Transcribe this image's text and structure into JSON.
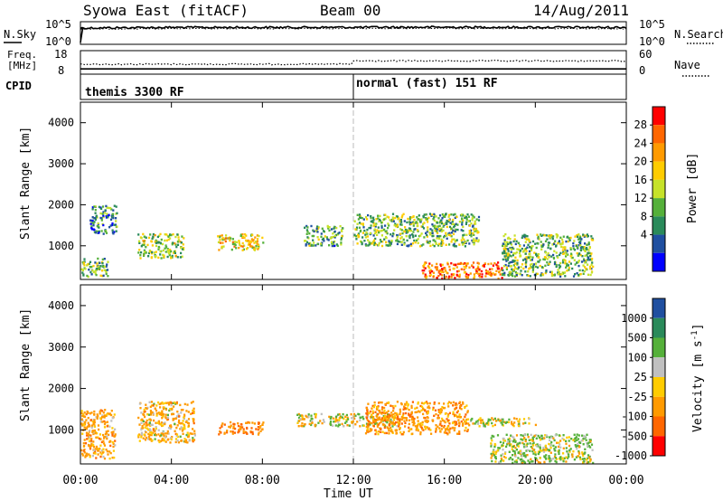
{
  "header": {
    "station": "Syowa East (fitACF)",
    "beam": "Beam 00",
    "date": "14/Aug/2011"
  },
  "noise_panel": {
    "left_label": "N.Sky",
    "right_label": "N.Search",
    "left_ticks": [
      "10^5",
      "10^0"
    ],
    "right_ticks": [
      "10^5",
      "10^0"
    ]
  },
  "freq_panel": {
    "left_label_line1": "Freq.",
    "left_label_line2": "[MHz]",
    "right_label": "Nave",
    "left_ticks": [
      "18",
      "8"
    ],
    "right_ticks": [
      "60",
      "0"
    ]
  },
  "cpid_panel": {
    "label": "CPID",
    "segments": [
      {
        "label": "themis 3300 RF"
      },
      {
        "label": "normal (fast) 151 RF"
      }
    ]
  },
  "x_axis": {
    "label": "Time UT",
    "ticks": [
      "00:00",
      "04:00",
      "08:00",
      "12:00",
      "16:00",
      "20:00",
      "00:00"
    ]
  },
  "power_panel": {
    "ylabel": "Slant Range [km]",
    "yticks": [
      "1000",
      "2000",
      "3000",
      "4000"
    ],
    "colorbar_label": "Power [dB]",
    "colorbar_ticks": [
      "28",
      "24",
      "20",
      "16",
      "12",
      "8",
      "4"
    ],
    "colors": [
      "#ff0000",
      "#ff6600",
      "#ff9a00",
      "#ffcc00",
      "#c6e22a",
      "#55b03a",
      "#2a8a5a",
      "#1f4fa0",
      "#0000ff"
    ]
  },
  "velocity_panel": {
    "ylabel": "Slant Range [km]",
    "yticks": [
      "1000",
      "2000",
      "3000",
      "4000"
    ],
    "colorbar_label_main": "Velocity [m s",
    "colorbar_label_exp": "-1",
    "colorbar_label_close": "]",
    "colorbar_ticks": [
      "1000",
      "500",
      "100",
      "25",
      "-25",
      "-100",
      "-500",
      "-1000"
    ],
    "colors": [
      "#1f4fa0",
      "#2a8a5a",
      "#55b03a",
      "#c0c0c0",
      "#ffcc00",
      "#ff9a00",
      "#ff6600",
      "#ff0000"
    ]
  },
  "chart_data": [
    {
      "type": "line",
      "title": "N.Sky / N.Search",
      "y_scale": "log",
      "ylim": [
        1,
        100000
      ],
      "x": [
        "00:00",
        "04:00",
        "08:00",
        "12:00",
        "16:00",
        "20:00",
        "00:00"
      ],
      "series": [
        {
          "name": "N.Sky",
          "values": [
            5000,
            7000,
            7000,
            7500,
            8000,
            7500,
            7000
          ]
        },
        {
          "name": "N.Search",
          "values": [
            3000,
            3500,
            3500,
            4000,
            4000,
            3800,
            3500
          ]
        }
      ]
    },
    {
      "type": "line",
      "title": "Freq. / Nave",
      "ylim_left": [
        8,
        18
      ],
      "ylim_right": [
        0,
        60
      ],
      "x": [
        "00:00",
        "04:00",
        "08:00",
        "12:00",
        "16:00",
        "20:00",
        "00:00"
      ],
      "series": [
        {
          "name": "Freq.",
          "values": [
            10,
            10,
            10,
            10,
            10,
            10,
            10
          ]
        },
        {
          "name": "Nave",
          "values": [
            25,
            25,
            25,
            34,
            34,
            34,
            34
          ]
        }
      ]
    },
    {
      "type": "heatmap",
      "title": "Power [dB]",
      "ylabel": "Slant Range [km]",
      "xlabel": "Time UT",
      "xlim_hours": [
        0,
        24
      ],
      "ylim_km": [
        180,
        4500
      ],
      "clim": [
        0,
        30
      ],
      "regions": [
        {
          "t0": 0.0,
          "t1": 1.2,
          "r0": 250,
          "r1": 700,
          "value": 12
        },
        {
          "t0": 0.4,
          "t1": 1.6,
          "r0": 1300,
          "r1": 2000,
          "value": 8
        },
        {
          "t0": 2.5,
          "t1": 4.5,
          "r0": 700,
          "r1": 1300,
          "value": 14
        },
        {
          "t0": 6.0,
          "t1": 8.0,
          "r0": 900,
          "r1": 1300,
          "value": 18
        },
        {
          "t0": 9.8,
          "t1": 11.5,
          "r0": 1000,
          "r1": 1500,
          "value": 10
        },
        {
          "t0": 12.0,
          "t1": 17.5,
          "r0": 1000,
          "r1": 1800,
          "value": 12
        },
        {
          "t0": 15.0,
          "t1": 18.5,
          "r0": 200,
          "r1": 600,
          "value": 24
        },
        {
          "t0": 18.5,
          "t1": 22.5,
          "r0": 250,
          "r1": 1300,
          "value": 12
        }
      ]
    },
    {
      "type": "heatmap",
      "title": "Velocity [m s-1]",
      "ylabel": "Slant Range [km]",
      "xlabel": "Time UT",
      "xlim_hours": [
        0,
        24
      ],
      "ylim_km": [
        180,
        4500
      ],
      "clim": [
        -1000,
        1000
      ],
      "regions": [
        {
          "t0": 0.0,
          "t1": 1.5,
          "r0": 300,
          "r1": 1500,
          "value": -150
        },
        {
          "t0": 2.5,
          "t1": 5.0,
          "r0": 700,
          "r1": 1700,
          "value": -120
        },
        {
          "t0": 6.0,
          "t1": 8.0,
          "r0": 900,
          "r1": 1200,
          "value": -300
        },
        {
          "t0": 9.5,
          "t1": 14.0,
          "r0": 1100,
          "r1": 1400,
          "value": 0
        },
        {
          "t0": 12.5,
          "t1": 17.0,
          "r0": 900,
          "r1": 1700,
          "value": -200
        },
        {
          "t0": 17.0,
          "t1": 20.0,
          "r0": 1100,
          "r1": 1300,
          "value": 0
        },
        {
          "t0": 18.0,
          "t1": 22.5,
          "r0": 200,
          "r1": 900,
          "value": 80
        }
      ]
    }
  ]
}
